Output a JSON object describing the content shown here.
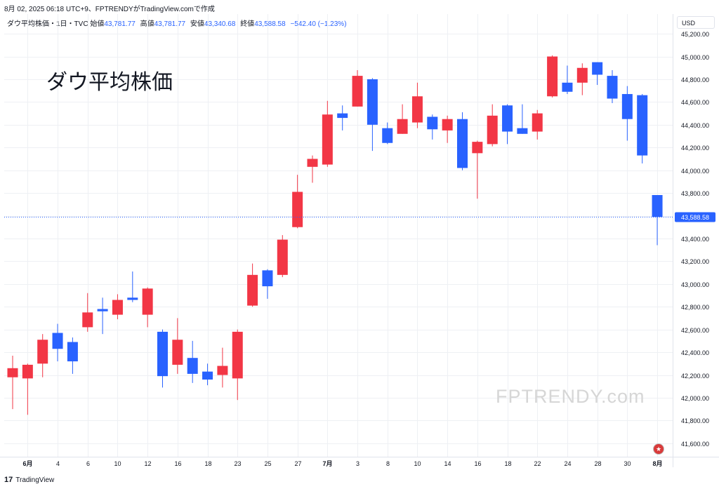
{
  "header": {
    "top_line": "8月 02, 2025 06:18 UTC+9、FPTRENDYがTradingView.comで作成",
    "symbol": "ダウ平均株価・1日・TVC",
    "open_label": "始値",
    "open_value": "43,781.77",
    "high_label": "高値",
    "high_value": "43,781.77",
    "low_label": "安値",
    "low_value": "43,340.68",
    "close_label": "終値",
    "close_value": "43,588.58",
    "change": "−542.40 (−1.23%)"
  },
  "title_overlay": "ダウ平均株価",
  "watermark": "FPTRENDY.com",
  "footer": {
    "logo_mark": "17",
    "logo_text": "TradingView"
  },
  "price_scale": {
    "currency": "USD"
  },
  "icons": {
    "flag": "us-flag-icon"
  },
  "colors": {
    "up": "#f23645",
    "down": "#2962ff",
    "grid": "#eef0f4",
    "last_price": "#2962ff"
  },
  "chart_data": {
    "type": "candlestick",
    "ylim": [
      41500,
      45250
    ],
    "y_ticks": [
      41600,
      41800,
      42000,
      42200,
      42400,
      42600,
      42800,
      43000,
      43200,
      43400,
      43600,
      43800,
      44000,
      44200,
      44400,
      44600,
      44800,
      45000,
      45200
    ],
    "y_tick_labels": [
      "41,600.00",
      "41,800.00",
      "42,000.00",
      "42,200.00",
      "42,400.00",
      "42,600.00",
      "42,800.00",
      "43,000.00",
      "43,200.00",
      "43,400.00",
      "43,600.00",
      "43,800.00",
      "44,000.00",
      "44,200.00",
      "44,400.00",
      "44,600.00",
      "44,800.00",
      "45,000.00",
      "45,200.00"
    ],
    "x_ticks": [
      {
        "index": 1,
        "label": "6月",
        "bold": true
      },
      {
        "index": 3,
        "label": "4"
      },
      {
        "index": 5,
        "label": "6"
      },
      {
        "index": 7,
        "label": "10"
      },
      {
        "index": 9,
        "label": "12"
      },
      {
        "index": 11,
        "label": "16"
      },
      {
        "index": 13,
        "label": "18"
      },
      {
        "index": 15,
        "label": "23"
      },
      {
        "index": 17,
        "label": "25"
      },
      {
        "index": 19,
        "label": "27"
      },
      {
        "index": 21,
        "label": "7月",
        "bold": true
      },
      {
        "index": 23,
        "label": "3"
      },
      {
        "index": 25,
        "label": "8"
      },
      {
        "index": 27,
        "label": "10"
      },
      {
        "index": 29,
        "label": "14"
      },
      {
        "index": 31,
        "label": "16"
      },
      {
        "index": 33,
        "label": "18"
      },
      {
        "index": 35,
        "label": "22"
      },
      {
        "index": 37,
        "label": "24"
      },
      {
        "index": 39,
        "label": "28"
      },
      {
        "index": 41,
        "label": "30"
      },
      {
        "index": 43,
        "label": "8月",
        "bold": true
      }
    ],
    "last_price": 43588.58,
    "last_price_label": "43,588.58",
    "candles": [
      {
        "o": 42180,
        "h": 42370,
        "l": 41900,
        "c": 42260
      },
      {
        "o": 42170,
        "h": 42300,
        "l": 41850,
        "c": 42290
      },
      {
        "o": 42300,
        "h": 42560,
        "l": 42180,
        "c": 42510
      },
      {
        "o": 42570,
        "h": 42650,
        "l": 42320,
        "c": 42430
      },
      {
        "o": 42490,
        "h": 42530,
        "l": 42210,
        "c": 42320
      },
      {
        "o": 42620,
        "h": 42920,
        "l": 42580,
        "c": 42750
      },
      {
        "o": 42780,
        "h": 42880,
        "l": 42560,
        "c": 42760
      },
      {
        "o": 42730,
        "h": 42910,
        "l": 42690,
        "c": 42860
      },
      {
        "o": 42880,
        "h": 43110,
        "l": 42840,
        "c": 42860
      },
      {
        "o": 42730,
        "h": 42970,
        "l": 42620,
        "c": 42960
      },
      {
        "o": 42580,
        "h": 42600,
        "l": 42090,
        "c": 42190
      },
      {
        "o": 42290,
        "h": 42700,
        "l": 42210,
        "c": 42510
      },
      {
        "o": 42350,
        "h": 42500,
        "l": 42130,
        "c": 42210
      },
      {
        "o": 42230,
        "h": 42300,
        "l": 42110,
        "c": 42160
      },
      {
        "o": 42200,
        "h": 42440,
        "l": 42090,
        "c": 42280
      },
      {
        "o": 42170,
        "h": 42600,
        "l": 41980,
        "c": 42580
      },
      {
        "o": 42810,
        "h": 43180,
        "l": 42800,
        "c": 43080
      },
      {
        "o": 43120,
        "h": 43130,
        "l": 42870,
        "c": 42980
      },
      {
        "o": 43080,
        "h": 43430,
        "l": 43060,
        "c": 43390
      },
      {
        "o": 43500,
        "h": 43960,
        "l": 43490,
        "c": 43810
      },
      {
        "o": 44030,
        "h": 44130,
        "l": 43890,
        "c": 44100
      },
      {
        "o": 44050,
        "h": 44610,
        "l": 44030,
        "c": 44490
      },
      {
        "o": 44500,
        "h": 44570,
        "l": 44350,
        "c": 44460
      },
      {
        "o": 44560,
        "h": 44880,
        "l": 44560,
        "c": 44830
      },
      {
        "o": 44800,
        "h": 44810,
        "l": 44170,
        "c": 44400
      },
      {
        "o": 44370,
        "h": 44420,
        "l": 44230,
        "c": 44240
      },
      {
        "o": 44320,
        "h": 44580,
        "l": 44320,
        "c": 44450
      },
      {
        "o": 44420,
        "h": 44770,
        "l": 44370,
        "c": 44650
      },
      {
        "o": 44470,
        "h": 44490,
        "l": 44270,
        "c": 44360
      },
      {
        "o": 44350,
        "h": 44480,
        "l": 44240,
        "c": 44450
      },
      {
        "o": 44450,
        "h": 44510,
        "l": 44000,
        "c": 44020
      },
      {
        "o": 44150,
        "h": 44260,
        "l": 43750,
        "c": 44250
      },
      {
        "o": 44230,
        "h": 44580,
        "l": 44210,
        "c": 44480
      },
      {
        "o": 44570,
        "h": 44580,
        "l": 44230,
        "c": 44340
      },
      {
        "o": 44370,
        "h": 44580,
        "l": 44320,
        "c": 44320
      },
      {
        "o": 44340,
        "h": 44530,
        "l": 44270,
        "c": 44500
      },
      {
        "o": 44650,
        "h": 45010,
        "l": 44640,
        "c": 45000
      },
      {
        "o": 44770,
        "h": 44920,
        "l": 44670,
        "c": 44690
      },
      {
        "o": 44770,
        "h": 44940,
        "l": 44660,
        "c": 44900
      },
      {
        "o": 44950,
        "h": 44950,
        "l": 44750,
        "c": 44840
      },
      {
        "o": 44830,
        "h": 44880,
        "l": 44590,
        "c": 44630
      },
      {
        "o": 44670,
        "h": 44740,
        "l": 44260,
        "c": 44450
      },
      {
        "o": 44660,
        "h": 44670,
        "l": 44060,
        "c": 44130
      },
      {
        "o": 43782,
        "h": 43782,
        "l": 43341,
        "c": 43589
      }
    ]
  }
}
